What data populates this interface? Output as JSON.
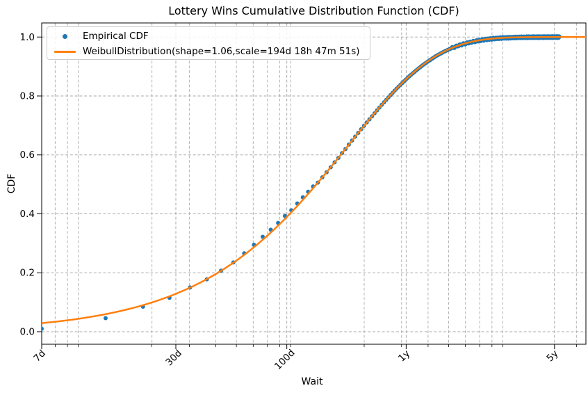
{
  "title": "Lottery Wins Cumulative Distribution Function (CDF)",
  "chart_data": {
    "type": "mixed",
    "title": "Lottery Wins Cumulative Distribution Function (CDF)",
    "xlabel": "Wait",
    "ylabel": "CDF",
    "x_scale": "log-time",
    "xlim_days": [
      7,
      2566
    ],
    "ylim": [
      -0.0425,
      1.0478
    ],
    "grid": "both, dashed",
    "grid_color": "#b3b3b3",
    "legend_position": "upper left",
    "x_major_ticks": [
      {
        "days": 7,
        "label": "7d"
      },
      {
        "days": 30,
        "label": "30d"
      },
      {
        "days": 100,
        "label": "100d"
      },
      {
        "days": 365,
        "label": "1y"
      },
      {
        "days": 1825,
        "label": "5y"
      }
    ],
    "x_minor_ticks_days": [
      8.102,
      9.259,
      10.417,
      23.148,
      34.722,
      46.296,
      57.87,
      69.444,
      81.019,
      92.593,
      104.167,
      231.481,
      347.222,
      462.963,
      578.704,
      694.444,
      810.185,
      925.926,
      1041.667,
      2314.815
    ],
    "y_ticks": [
      {
        "value": 0.0,
        "label": "0.0"
      },
      {
        "value": 0.2,
        "label": "0.2"
      },
      {
        "value": 0.4,
        "label": "0.4"
      },
      {
        "value": 0.6,
        "label": "0.6"
      },
      {
        "value": 0.8,
        "label": "0.8"
      },
      {
        "value": 1.0,
        "label": "1.0"
      }
    ],
    "series": [
      {
        "name": "Empirical CDF",
        "type": "scatter",
        "color": "#1f77b4",
        "marker": "dot",
        "sample_cadence_days": 7,
        "max_wait_days": 1925,
        "points": [
          [
            7,
            0.01
          ],
          [
            14,
            0.046
          ],
          [
            21,
            0.085
          ],
          [
            28,
            0.115
          ],
          [
            35,
            0.15
          ],
          [
            42,
            0.178
          ],
          [
            49,
            0.207
          ],
          [
            56,
            0.235
          ],
          [
            63,
            0.266
          ],
          [
            70,
            0.295
          ],
          [
            77,
            0.322
          ],
          [
            84,
            0.346
          ],
          [
            91,
            0.369
          ],
          [
            98,
            0.393
          ],
          [
            105,
            0.412
          ],
          [
            112,
            0.435
          ],
          [
            119,
            0.456
          ],
          [
            126,
            0.475
          ],
          [
            133,
            0.493
          ],
          [
            140,
            0.506
          ],
          [
            147,
            0.524
          ],
          [
            154,
            0.541
          ],
          [
            161,
            0.558
          ],
          [
            168,
            0.575
          ],
          [
            175,
            0.59
          ],
          [
            182,
            0.606
          ],
          [
            189,
            0.62
          ],
          [
            196,
            0.635
          ],
          [
            210,
            0.662
          ],
          [
            224,
            0.687
          ],
          [
            238,
            0.71
          ],
          [
            252,
            0.731
          ],
          [
            266,
            0.751
          ],
          [
            280,
            0.77
          ],
          [
            301,
            0.795
          ],
          [
            322,
            0.818
          ],
          [
            350,
            0.844
          ],
          [
            378,
            0.867
          ],
          [
            406,
            0.886
          ],
          [
            434,
            0.903
          ],
          [
            469,
            0.92
          ],
          [
            504,
            0.935
          ],
          [
            546,
            0.949
          ],
          [
            588,
            0.96
          ],
          [
            637,
            0.97
          ],
          [
            686,
            0.977
          ],
          [
            742,
            0.983
          ],
          [
            805,
            0.988
          ],
          [
            875,
            0.992
          ],
          [
            952,
            0.995
          ],
          [
            1050,
            0.997
          ],
          [
            1155,
            0.998
          ],
          [
            1260,
            0.999
          ],
          [
            1400,
            0.9994
          ],
          [
            1575,
            0.9996
          ],
          [
            1750,
            0.9998
          ],
          [
            1925,
            0.9999
          ]
        ]
      },
      {
        "name": "WeibullDistribution(shape=1.06,scale=194d 18h 47m 51s)",
        "type": "line",
        "color": "#ff7f0e",
        "line_width": 2.5,
        "model": {
          "distribution": "Weibull",
          "shape": 1.06,
          "scale": "194d 18h 47m 51s",
          "scale_days": 194.783
        }
      }
    ]
  }
}
